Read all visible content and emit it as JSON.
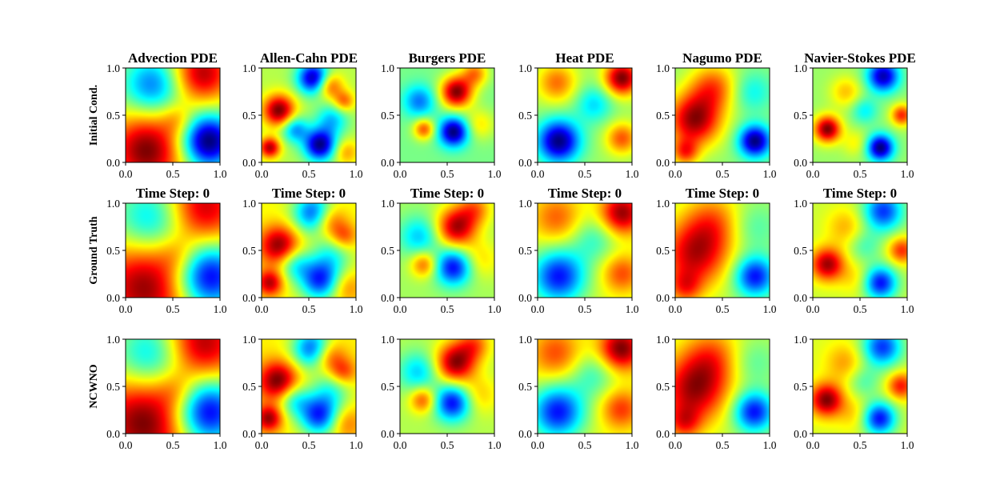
{
  "chart_data": {
    "type": "heatmap",
    "layout": {
      "rows": 3,
      "columns": 6
    },
    "row_labels": [
      "Initial Cond.",
      "Ground Truth",
      "NCWNO"
    ],
    "column_titles": [
      "Advection PDE",
      "Allen-Cahn PDE",
      "Burgers PDE",
      "Heat PDE",
      "Nagumo PDE",
      "Navier-Stokes PDE"
    ],
    "row_titles": {
      "ground_truth": [
        "Time Step: 0",
        "Time Step: 0",
        "Time Step: 0",
        "Time Step: 0",
        "Time Step: 0",
        "Time Step: 0"
      ]
    },
    "xlim": [
      0.0,
      1.0
    ],
    "ylim": [
      0.0,
      1.0
    ],
    "x_ticks": [
      "0.0",
      "0.5",
      "1.0"
    ],
    "y_ticks": [
      "0.0",
      "0.5",
      "1.0"
    ],
    "colormap": "jet",
    "colormap_stops": [
      "#00007f",
      "#0000ff",
      "#0080ff",
      "#00ffff",
      "#80ff80",
      "#ffff00",
      "#ff8000",
      "#ff0000",
      "#7f0000"
    ],
    "fields": [
      {
        "name": "Advection PDE",
        "blobs": [
          [
            0.22,
            0.12,
            0.28,
            0.75
          ],
          [
            0.82,
            0.95,
            0.22,
            0.65
          ],
          [
            0.88,
            0.22,
            0.2,
            -1.0
          ],
          [
            0.28,
            0.82,
            0.22,
            -0.55
          ],
          [
            0.55,
            0.45,
            0.12,
            0.2
          ]
        ]
      },
      {
        "name": "Allen-Cahn PDE",
        "blobs": [
          [
            0.55,
            0.9,
            0.12,
            -0.9
          ],
          [
            0.62,
            0.18,
            0.12,
            -0.95
          ],
          [
            0.18,
            0.55,
            0.12,
            0.8
          ],
          [
            0.08,
            0.15,
            0.08,
            0.7
          ],
          [
            0.35,
            0.35,
            0.1,
            -0.5
          ],
          [
            0.75,
            0.45,
            0.12,
            -0.4
          ],
          [
            0.72,
            0.82,
            0.1,
            0.5
          ],
          [
            0.88,
            0.65,
            0.08,
            0.4
          ],
          [
            0.9,
            0.1,
            0.1,
            0.3
          ]
        ]
      },
      {
        "name": "Burgers PDE",
        "blobs": [
          [
            0.6,
            0.75,
            0.12,
            1.0
          ],
          [
            0.57,
            0.32,
            0.11,
            -1.0
          ],
          [
            0.2,
            0.65,
            0.12,
            -0.5
          ],
          [
            0.25,
            0.35,
            0.08,
            0.6
          ],
          [
            0.85,
            0.4,
            0.12,
            0.3
          ],
          [
            0.8,
            0.95,
            0.1,
            0.5
          ]
        ]
      },
      {
        "name": "Heat PDE",
        "blobs": [
          [
            0.22,
            0.22,
            0.16,
            -1.0
          ],
          [
            0.9,
            0.9,
            0.13,
            0.9
          ],
          [
            0.6,
            0.62,
            0.14,
            -0.35
          ],
          [
            0.9,
            0.25,
            0.12,
            0.5
          ],
          [
            0.2,
            0.85,
            0.15,
            0.45
          ]
        ]
      },
      {
        "name": "Nagumo PDE",
        "blobs": [
          [
            0.2,
            0.45,
            0.2,
            0.85
          ],
          [
            0.4,
            0.8,
            0.18,
            0.5
          ],
          [
            0.85,
            0.22,
            0.12,
            -0.95
          ],
          [
            0.82,
            0.75,
            0.15,
            -0.25
          ],
          [
            0.1,
            0.1,
            0.1,
            0.5
          ]
        ]
      },
      {
        "name": "Navier-Stokes PDE",
        "blobs": [
          [
            0.72,
            0.15,
            0.1,
            -1.0
          ],
          [
            0.75,
            0.92,
            0.12,
            -0.9
          ],
          [
            0.15,
            0.35,
            0.1,
            0.9
          ],
          [
            0.35,
            0.75,
            0.12,
            0.3
          ],
          [
            0.55,
            0.55,
            0.1,
            -0.3
          ],
          [
            0.95,
            0.5,
            0.08,
            0.6
          ],
          [
            0.45,
            0.2,
            0.1,
            0.2
          ]
        ]
      }
    ]
  }
}
